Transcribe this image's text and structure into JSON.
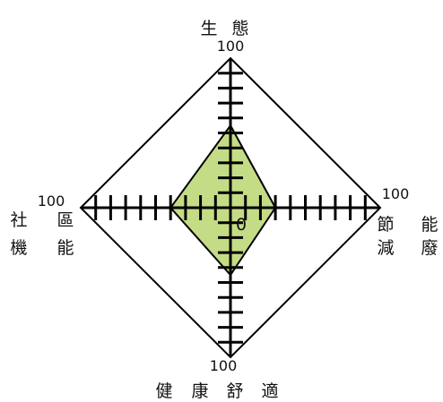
{
  "chart_data": {
    "type": "radar",
    "axes": [
      {
        "key": "top",
        "label_chars": [
          "生",
          "態"
        ]
      },
      {
        "key": "right",
        "label_chars": [
          [
            "節",
            "能"
          ],
          [
            "減",
            "廢"
          ]
        ]
      },
      {
        "key": "bottom",
        "label_chars": [
          "健",
          "康",
          "舒",
          "適"
        ]
      },
      {
        "key": "left",
        "label_chars": [
          [
            "社",
            "區"
          ],
          [
            "機",
            "能"
          ]
        ]
      }
    ],
    "max_labels": {
      "top": "100",
      "right": "100",
      "bottom": "100",
      "left": "100"
    },
    "center_label": "0",
    "range": [
      0,
      100
    ],
    "tick_count": 10,
    "values": {
      "top": 55,
      "right": 30,
      "bottom": 45,
      "left": 40
    },
    "fill_color": "#c5dc86",
    "stroke_color": "#000000"
  }
}
